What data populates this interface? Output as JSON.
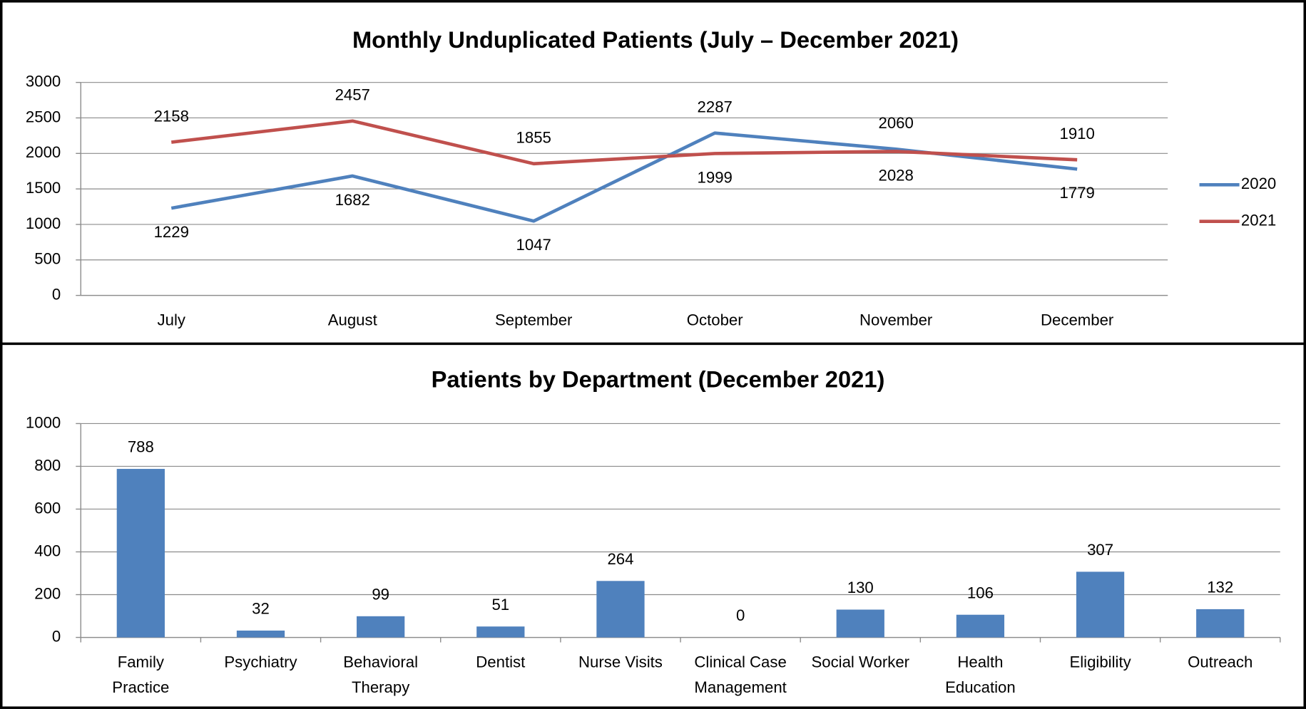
{
  "chart_data": [
    {
      "type": "line",
      "title": "Monthly  Unduplicated Patients (July – December 2021)",
      "categories": [
        "July",
        "August",
        "September",
        "October",
        "November",
        "December"
      ],
      "series": [
        {
          "name": "2020",
          "color": "#4f81bd",
          "values": [
            1229,
            1682,
            1047,
            2287,
            2060,
            1779
          ]
        },
        {
          "name": "2021",
          "color": "#c0504d",
          "values": [
            2158,
            2457,
            1855,
            1999,
            2028,
            1910
          ]
        }
      ],
      "ylim": [
        0,
        3000
      ],
      "yticks": [
        0,
        500,
        1000,
        1500,
        2000,
        2500,
        3000
      ],
      "grid": true,
      "legend": "right"
    },
    {
      "type": "bar",
      "title": "Patients by  Department (December 2021)",
      "categories": [
        "Family\nPractice",
        "Psychiatry",
        "Behavioral\nTherapy",
        "Dentist",
        "Nurse Visits",
        "Clinical Case\nManagement",
        "Social Worker",
        "Health\nEducation",
        "Eligibility",
        "Outreach"
      ],
      "values": [
        788,
        32,
        99,
        51,
        264,
        0,
        130,
        106,
        307,
        132
      ],
      "color": "#4f81bd",
      "ylim": [
        0,
        1000
      ],
      "yticks": [
        0,
        200,
        400,
        600,
        800,
        1000
      ],
      "grid": true
    }
  ]
}
